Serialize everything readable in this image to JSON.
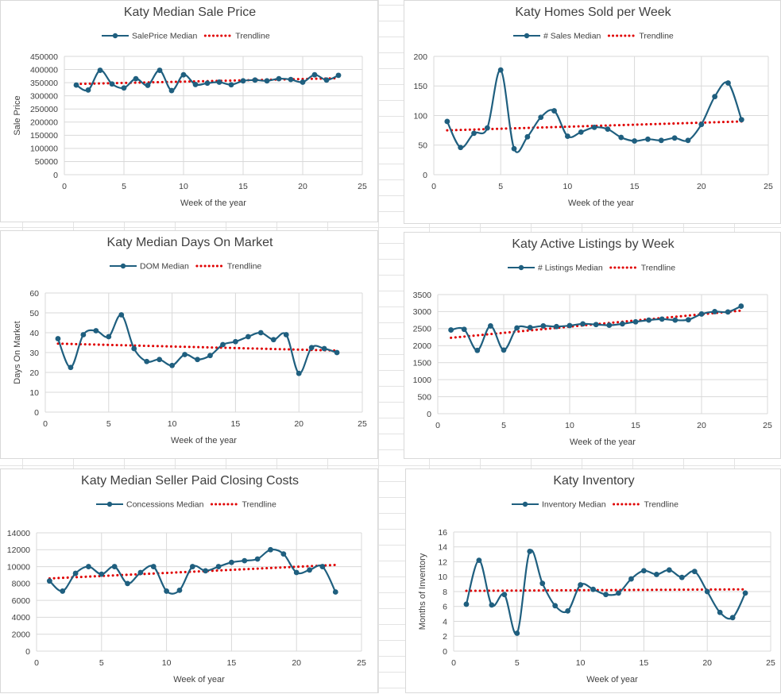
{
  "colors": {
    "series": "#1f5f7f",
    "trend": "#e00000",
    "grid": "#d9d9d9"
  },
  "chart_data": [
    {
      "type": "line",
      "title": "Katy Median Sale Price",
      "series_name": "SalePrice Median",
      "trend_name": "Trendline",
      "xlabel": "Week of the year",
      "ylabel": "Sale Price",
      "xlim": [
        0,
        25
      ],
      "xticks": [
        0,
        5,
        10,
        15,
        20,
        25
      ],
      "ylim": [
        0,
        450000
      ],
      "yticks": [
        0,
        50000,
        100000,
        150000,
        200000,
        250000,
        300000,
        350000,
        400000,
        450000
      ],
      "x": [
        1,
        2,
        3,
        4,
        5,
        6,
        7,
        8,
        9,
        10,
        11,
        12,
        13,
        14,
        15,
        16,
        17,
        18,
        19,
        20,
        21,
        22,
        23
      ],
      "values": [
        341000,
        322000,
        397000,
        345000,
        330000,
        365000,
        340000,
        397000,
        320000,
        380000,
        343000,
        348000,
        352000,
        342000,
        357000,
        360000,
        357000,
        365000,
        362000,
        352000,
        380000,
        360000,
        378000
      ],
      "trend": [
        345000,
        367000
      ]
    },
    {
      "type": "line",
      "title": "Katy Homes Sold per Week",
      "series_name": "# Sales Median",
      "trend_name": "Trendline",
      "xlabel": "Week of the year",
      "ylabel": "",
      "xlim": [
        0,
        25
      ],
      "xticks": [
        0,
        5,
        10,
        15,
        20,
        25
      ],
      "ylim": [
        0,
        200
      ],
      "yticks": [
        0,
        50,
        100,
        150,
        200
      ],
      "x": [
        1,
        2,
        3,
        4,
        5,
        6,
        7,
        8,
        9,
        10,
        11,
        12,
        13,
        14,
        15,
        16,
        17,
        18,
        19,
        20,
        21,
        22,
        23
      ],
      "values": [
        90,
        46,
        70,
        79,
        177,
        44,
        64,
        97,
        108,
        65,
        72,
        80,
        77,
        63,
        57,
        60,
        58,
        62,
        58,
        85,
        132,
        155,
        93
      ],
      "trend": [
        75,
        90
      ]
    },
    {
      "type": "line",
      "title": "Katy Median Days On Market",
      "series_name": "DOM Median",
      "trend_name": "Trendline",
      "xlabel": "Week of the year",
      "ylabel": "Days On Market",
      "xlim": [
        0,
        25
      ],
      "xticks": [
        0,
        5,
        10,
        15,
        20,
        25
      ],
      "ylim": [
        0,
        60
      ],
      "yticks": [
        0,
        10,
        20,
        30,
        40,
        50,
        60
      ],
      "x": [
        1,
        2,
        3,
        4,
        5,
        6,
        7,
        8,
        9,
        10,
        11,
        12,
        13,
        14,
        15,
        16,
        17,
        18,
        19,
        20,
        21,
        22,
        23
      ],
      "values": [
        37,
        22.5,
        39,
        41,
        38,
        49,
        32,
        25.5,
        26.5,
        23.5,
        29,
        26.5,
        28.5,
        34,
        35.5,
        38,
        40,
        36.5,
        39,
        19.5,
        32.5,
        32,
        30
      ],
      "trend": [
        34.5,
        31
      ]
    },
    {
      "type": "line",
      "title": "Katy Active Listings by Week",
      "series_name": "# Listings Median",
      "trend_name": "Trendline",
      "xlabel": "Week of the year",
      "ylabel": "",
      "xlim": [
        0,
        25
      ],
      "xticks": [
        0,
        5,
        10,
        15,
        20,
        25
      ],
      "ylim": [
        0,
        3500
      ],
      "yticks": [
        0,
        500,
        1000,
        1500,
        2000,
        2500,
        3000,
        3500
      ],
      "x": [
        1,
        2,
        3,
        4,
        5,
        6,
        7,
        8,
        9,
        10,
        11,
        12,
        13,
        14,
        15,
        16,
        17,
        18,
        19,
        20,
        21,
        22,
        23
      ],
      "values": [
        2460,
        2480,
        1860,
        2580,
        1870,
        2520,
        2530,
        2580,
        2560,
        2590,
        2640,
        2620,
        2600,
        2640,
        2700,
        2750,
        2780,
        2750,
        2760,
        2930,
        3000,
        2990,
        3160
      ],
      "trend": [
        2230,
        3030
      ]
    },
    {
      "type": "line",
      "title": "Katy Median Seller Paid Closing Costs",
      "series_name": "Concessions Median",
      "trend_name": "Trendline",
      "xlabel": "Week of year",
      "ylabel": "",
      "xlim": [
        0,
        25
      ],
      "xticks": [
        0,
        5,
        10,
        15,
        20,
        25
      ],
      "ylim": [
        0,
        14000
      ],
      "yticks": [
        0,
        2000,
        4000,
        6000,
        8000,
        10000,
        12000,
        14000
      ],
      "x": [
        1,
        2,
        3,
        4,
        5,
        6,
        7,
        8,
        9,
        10,
        11,
        12,
        13,
        14,
        15,
        16,
        17,
        18,
        19,
        20,
        21,
        22,
        23
      ],
      "values": [
        8300,
        7100,
        9200,
        10000,
        9100,
        10000,
        8000,
        9300,
        10000,
        7100,
        7200,
        10000,
        9500,
        10000,
        10500,
        10700,
        10900,
        12000,
        11500,
        9300,
        9600,
        10000,
        7000
      ],
      "trend": [
        8600,
        10200
      ]
    },
    {
      "type": "line",
      "title": "Katy Inventory",
      "series_name": "Inventory Median",
      "trend_name": "Trendline",
      "xlabel": "Week of year",
      "ylabel": "Months of Inventory",
      "xlim": [
        0,
        25
      ],
      "xticks": [
        0,
        5,
        10,
        15,
        20,
        25
      ],
      "ylim": [
        0,
        16
      ],
      "yticks": [
        0,
        2,
        4,
        6,
        8,
        10,
        12,
        14,
        16
      ],
      "x": [
        1,
        2,
        3,
        4,
        5,
        6,
        7,
        8,
        9,
        10,
        11,
        12,
        13,
        14,
        15,
        16,
        17,
        18,
        19,
        20,
        21,
        22,
        23
      ],
      "values": [
        6.3,
        12.2,
        6.2,
        7.6,
        2.4,
        13.4,
        9.1,
        6.1,
        5.4,
        8.9,
        8.3,
        7.6,
        7.8,
        9.7,
        10.8,
        10.3,
        10.9,
        9.9,
        10.7,
        8.0,
        5.2,
        4.5,
        7.8
      ],
      "trend": [
        8.1,
        8.3
      ]
    }
  ]
}
